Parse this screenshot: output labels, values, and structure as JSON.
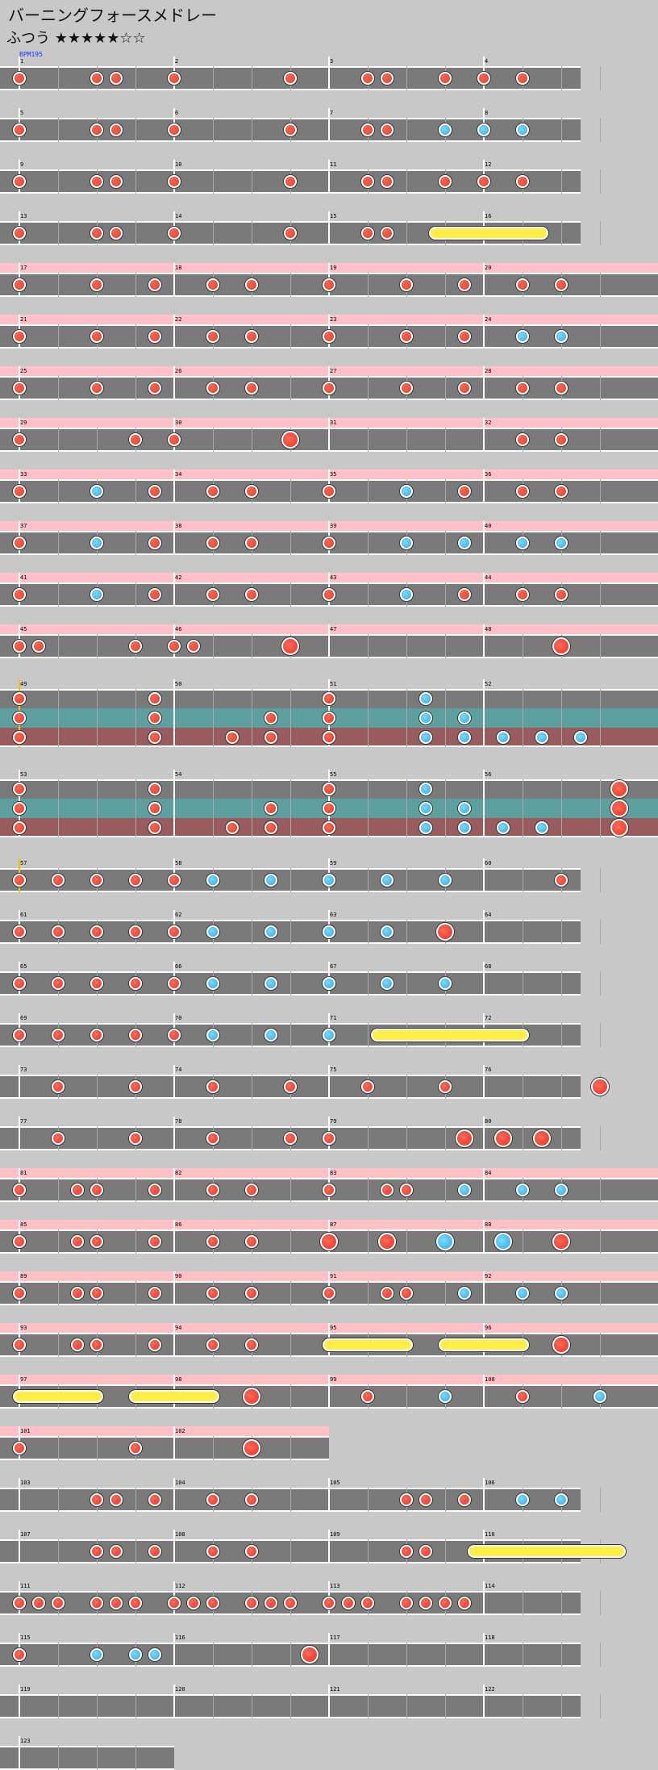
{
  "title": "バーニングフォースメドレー",
  "difficulty": {
    "label": "ふつう",
    "stars": "★★★★★☆☆"
  },
  "bpm_label": "BPM195",
  "colors": {
    "don": "#e8321e",
    "ka": "#2aa6e8",
    "roll": "#ffee44",
    "gogo_band": "#ffc0c6",
    "branch_normal": "#7a7a7a",
    "branch_pro": "#5e9fa0",
    "branch_master": "#9a5b5e"
  },
  "icons": {
    "don": "red-circle",
    "ka": "blue-circle",
    "roll": "yellow-bar"
  },
  "rows": [
    {
      "start": 1,
      "measures": 4,
      "gogo": false
    },
    {
      "start": 5,
      "measures": 4,
      "gogo": false
    },
    {
      "start": 9,
      "measures": 4,
      "gogo": false
    },
    {
      "start": 13,
      "measures": 4,
      "gogo": false
    },
    {
      "start": 17,
      "measures": 4,
      "gogo": true
    },
    {
      "start": 21,
      "measures": 4,
      "gogo": true
    },
    {
      "start": 25,
      "measures": 4,
      "gogo": true,
      "labels": [
        "25",
        "26",
        "27",
        "28"
      ]
    },
    {
      "start": 29,
      "measures": 4,
      "gogo": true
    },
    {
      "start": 33,
      "measures": 4,
      "gogo": true
    },
    {
      "start": 37,
      "measures": 4,
      "gogo": true
    },
    {
      "start": 41,
      "measures": 4,
      "gogo": true
    },
    {
      "start": 45,
      "measures": 4,
      "gogo": true
    },
    {
      "start": 49,
      "measures": 4,
      "gogo": false,
      "branch": true
    },
    {
      "start": 53,
      "measures": 4,
      "gogo": false,
      "branch": true
    },
    {
      "start": 57,
      "measures": 4,
      "gogo": false
    },
    {
      "start": 61,
      "measures": 4,
      "gogo": false
    },
    {
      "start": 65,
      "measures": 4,
      "gogo": false
    },
    {
      "start": 69,
      "measures": 4,
      "gogo": false
    },
    {
      "start": 73,
      "measures": 4,
      "gogo": false
    },
    {
      "start": 77,
      "measures": 4,
      "gogo": false
    },
    {
      "start": 81,
      "measures": 4,
      "gogo": true
    },
    {
      "start": 85,
      "measures": 4,
      "gogo": true
    },
    {
      "start": 89,
      "measures": 4,
      "gogo": true
    },
    {
      "start": 93,
      "measures": 4,
      "gogo": true
    },
    {
      "start": 97,
      "measures": 4,
      "gogo": true
    },
    {
      "start": 101,
      "measures": 2,
      "gogo": true
    },
    {
      "start": 103,
      "measures": 4,
      "gogo": false
    },
    {
      "start": 107,
      "measures": 4,
      "gogo": false
    },
    {
      "start": 111,
      "measures": 4,
      "gogo": false
    },
    {
      "start": 115,
      "measures": 4,
      "gogo": false
    },
    {
      "start": 119,
      "measures": 4,
      "gogo": false
    },
    {
      "start": 123,
      "measures": 1,
      "gogo": false
    }
  ],
  "notes": [
    [
      [
        0,
        "d"
      ],
      [
        4,
        "d"
      ],
      [
        5,
        "d"
      ],
      [
        8,
        "d"
      ],
      [
        14,
        "d"
      ],
      [
        18,
        "d"
      ],
      [
        19,
        "d"
      ],
      [
        22,
        "d"
      ],
      [
        24,
        "d"
      ],
      [
        26,
        "d"
      ]
    ],
    [
      [
        0,
        "d"
      ],
      [
        4,
        "d"
      ],
      [
        5,
        "d"
      ],
      [
        8,
        "d"
      ],
      [
        14,
        "d"
      ],
      [
        18,
        "d"
      ],
      [
        19,
        "d"
      ],
      [
        22,
        "k"
      ],
      [
        24,
        "k"
      ],
      [
        26,
        "k"
      ]
    ],
    [
      [
        0,
        "d"
      ],
      [
        4,
        "d"
      ],
      [
        5,
        "d"
      ],
      [
        8,
        "d"
      ],
      [
        14,
        "d"
      ],
      [
        18,
        "d"
      ],
      [
        19,
        "d"
      ],
      [
        22,
        "d"
      ],
      [
        24,
        "d"
      ],
      [
        26,
        "d"
      ]
    ],
    [
      [
        0,
        "d"
      ],
      [
        4,
        "d"
      ],
      [
        5,
        "d"
      ],
      [
        8,
        "d"
      ],
      [
        14,
        "d"
      ],
      [
        18,
        "d"
      ],
      [
        19,
        "d"
      ],
      [
        21.5,
        "r",
        27
      ]
    ],
    [
      [
        0,
        "d"
      ],
      [
        4,
        "d"
      ],
      [
        7,
        "d"
      ],
      [
        10,
        "d"
      ],
      [
        12,
        "d"
      ],
      [
        16,
        "d"
      ],
      [
        20,
        "d"
      ],
      [
        23,
        "d"
      ],
      [
        26,
        "d"
      ],
      [
        28,
        "d"
      ]
    ],
    [
      [
        0,
        "d"
      ],
      [
        4,
        "d"
      ],
      [
        7,
        "d"
      ],
      [
        10,
        "d"
      ],
      [
        12,
        "d"
      ],
      [
        16,
        "d"
      ],
      [
        20,
        "d"
      ],
      [
        23,
        "d"
      ],
      [
        26,
        "k"
      ],
      [
        28,
        "k"
      ]
    ],
    [
      [
        0,
        "d"
      ],
      [
        4,
        "d"
      ],
      [
        7,
        "d"
      ],
      [
        10,
        "d"
      ],
      [
        12,
        "d"
      ],
      [
        16,
        "d"
      ],
      [
        20,
        "d"
      ],
      [
        23,
        "d"
      ],
      [
        26,
        "d"
      ],
      [
        28,
        "d"
      ]
    ],
    [
      [
        0,
        "d"
      ],
      [
        6,
        "d"
      ],
      [
        8,
        "d"
      ],
      [
        14,
        "D"
      ],
      [
        26,
        "d"
      ],
      [
        28,
        "d"
      ]
    ],
    [
      [
        0,
        "d"
      ],
      [
        4,
        "k"
      ],
      [
        7,
        "d"
      ],
      [
        10,
        "d"
      ],
      [
        12,
        "d"
      ],
      [
        16,
        "d"
      ],
      [
        20,
        "k"
      ],
      [
        23,
        "d"
      ],
      [
        26,
        "d"
      ],
      [
        28,
        "d"
      ]
    ],
    [
      [
        0,
        "d"
      ],
      [
        4,
        "k"
      ],
      [
        7,
        "d"
      ],
      [
        10,
        "d"
      ],
      [
        12,
        "d"
      ],
      [
        16,
        "d"
      ],
      [
        20,
        "k"
      ],
      [
        23,
        "k"
      ],
      [
        26,
        "k"
      ],
      [
        28,
        "k"
      ]
    ],
    [
      [
        0,
        "d"
      ],
      [
        4,
        "k"
      ],
      [
        7,
        "d"
      ],
      [
        10,
        "d"
      ],
      [
        12,
        "d"
      ],
      [
        16,
        "d"
      ],
      [
        20,
        "k"
      ],
      [
        23,
        "d"
      ],
      [
        26,
        "d"
      ],
      [
        28,
        "d"
      ]
    ],
    [
      [
        0,
        "d"
      ],
      [
        1,
        "d"
      ],
      [
        6,
        "d"
      ],
      [
        8,
        "d"
      ],
      [
        9,
        "d"
      ],
      [
        14,
        "D"
      ],
      [
        28,
        "D"
      ]
    ]
  ],
  "notes_rest": [
    [
      [
        0,
        "d"
      ],
      [
        2,
        "d"
      ],
      [
        4,
        "d"
      ],
      [
        6,
        "d"
      ],
      [
        8,
        "d"
      ],
      [
        10,
        "k"
      ],
      [
        13,
        "k"
      ],
      [
        16,
        "k"
      ],
      [
        19,
        "k"
      ],
      [
        22,
        "k"
      ],
      [
        28,
        "d"
      ]
    ],
    [
      [
        0,
        "d"
      ],
      [
        2,
        "d"
      ],
      [
        4,
        "d"
      ],
      [
        6,
        "d"
      ],
      [
        8,
        "d"
      ],
      [
        10,
        "k"
      ],
      [
        13,
        "k"
      ],
      [
        16,
        "k"
      ],
      [
        19,
        "k"
      ],
      [
        22,
        "D"
      ]
    ],
    [
      [
        0,
        "d"
      ],
      [
        2,
        "d"
      ],
      [
        4,
        "d"
      ],
      [
        6,
        "d"
      ],
      [
        8,
        "d"
      ],
      [
        10,
        "k"
      ],
      [
        13,
        "k"
      ],
      [
        16,
        "k"
      ],
      [
        19,
        "k"
      ],
      [
        22,
        "k"
      ]
    ],
    [
      [
        0,
        "d"
      ],
      [
        2,
        "d"
      ],
      [
        4,
        "d"
      ],
      [
        6,
        "d"
      ],
      [
        8,
        "d"
      ],
      [
        10,
        "k"
      ],
      [
        13,
        "k"
      ],
      [
        16,
        "k"
      ],
      [
        18.5,
        "r",
        26
      ]
    ],
    [
      [
        2,
        "d"
      ],
      [
        6,
        "d"
      ],
      [
        10,
        "d"
      ],
      [
        14,
        "d"
      ],
      [
        18,
        "d"
      ],
      [
        22,
        "d"
      ],
      [
        30,
        "D"
      ]
    ],
    [
      [
        2,
        "d"
      ],
      [
        6,
        "d"
      ],
      [
        10,
        "d"
      ],
      [
        14,
        "d"
      ],
      [
        16,
        "d"
      ],
      [
        23,
        "D"
      ],
      [
        25,
        "D"
      ],
      [
        27,
        "D"
      ]
    ],
    [
      [
        0,
        "d"
      ],
      [
        3,
        "d"
      ],
      [
        4,
        "d"
      ],
      [
        7,
        "d"
      ],
      [
        10,
        "d"
      ],
      [
        12,
        "d"
      ],
      [
        16,
        "d"
      ],
      [
        19,
        "d"
      ],
      [
        20,
        "d"
      ],
      [
        23,
        "k"
      ],
      [
        26,
        "k"
      ],
      [
        28,
        "k"
      ]
    ],
    [
      [
        0,
        "d"
      ],
      [
        3,
        "d"
      ],
      [
        4,
        "d"
      ],
      [
        7,
        "d"
      ],
      [
        10,
        "d"
      ],
      [
        12,
        "d"
      ],
      [
        16,
        "D"
      ],
      [
        19,
        "D"
      ],
      [
        22,
        "K"
      ],
      [
        25,
        "K"
      ],
      [
        28,
        "D"
      ]
    ],
    [
      [
        0,
        "d"
      ],
      [
        3,
        "d"
      ],
      [
        4,
        "d"
      ],
      [
        7,
        "d"
      ],
      [
        10,
        "d"
      ],
      [
        12,
        "d"
      ],
      [
        16,
        "d"
      ],
      [
        19,
        "d"
      ],
      [
        20,
        "d"
      ],
      [
        23,
        "k"
      ],
      [
        26,
        "k"
      ],
      [
        28,
        "k"
      ]
    ],
    [
      [
        0,
        "d"
      ],
      [
        3,
        "d"
      ],
      [
        4,
        "d"
      ],
      [
        7,
        "d"
      ],
      [
        10,
        "d"
      ],
      [
        12,
        "d"
      ],
      [
        16,
        "r",
        20
      ],
      [
        22,
        "r",
        26
      ],
      [
        28,
        "D"
      ]
    ],
    [
      [
        0,
        "r",
        4
      ],
      [
        6,
        "r",
        10
      ],
      [
        12,
        "D"
      ],
      [
        18,
        "d"
      ],
      [
        22,
        "k"
      ],
      [
        26,
        "d"
      ],
      [
        30,
        "k"
      ]
    ],
    [
      [
        0,
        "d"
      ],
      [
        6,
        "d"
      ],
      [
        12,
        "D"
      ]
    ],
    [
      [
        4,
        "d"
      ],
      [
        5,
        "d"
      ],
      [
        7,
        "d"
      ],
      [
        10,
        "d"
      ],
      [
        12,
        "d"
      ],
      [
        20,
        "d"
      ],
      [
        21,
        "d"
      ],
      [
        23,
        "d"
      ],
      [
        26,
        "k"
      ],
      [
        28,
        "k"
      ]
    ],
    [
      [
        4,
        "d"
      ],
      [
        5,
        "d"
      ],
      [
        7,
        "d"
      ],
      [
        10,
        "d"
      ],
      [
        12,
        "d"
      ],
      [
        20,
        "d"
      ],
      [
        21,
        "d"
      ],
      [
        23.5,
        "r",
        31
      ]
    ],
    [
      [
        0,
        "d"
      ],
      [
        1,
        "d"
      ],
      [
        2,
        "d"
      ],
      [
        4,
        "d"
      ],
      [
        5,
        "d"
      ],
      [
        6,
        "d"
      ],
      [
        8,
        "d"
      ],
      [
        9,
        "d"
      ],
      [
        10,
        "d"
      ],
      [
        12,
        "d"
      ],
      [
        13,
        "d"
      ],
      [
        14,
        "d"
      ],
      [
        16,
        "d"
      ],
      [
        17,
        "d"
      ],
      [
        18,
        "d"
      ],
      [
        20,
        "d"
      ],
      [
        21,
        "d"
      ],
      [
        22,
        "d"
      ],
      [
        23,
        "d"
      ]
    ],
    [
      [
        0,
        "d"
      ],
      [
        4,
        "k"
      ],
      [
        6,
        "k"
      ],
      [
        7,
        "k"
      ],
      [
        15,
        "D"
      ]
    ],
    [],
    []
  ],
  "branch_notes": {
    "row49": [
      [
        [
          0,
          "d"
        ],
        [
          7,
          "d"
        ],
        [
          16,
          "d"
        ],
        [
          21,
          "k"
        ]
      ],
      [
        [
          0,
          "d"
        ],
        [
          7,
          "d"
        ],
        [
          13,
          "d"
        ],
        [
          16,
          "d"
        ],
        [
          21,
          "k"
        ],
        [
          23,
          "k"
        ]
      ],
      [
        [
          0,
          "d"
        ],
        [
          7,
          "d"
        ],
        [
          11,
          "d"
        ],
        [
          13,
          "d"
        ],
        [
          16,
          "d"
        ],
        [
          21,
          "k"
        ],
        [
          23,
          "k"
        ],
        [
          25,
          "k"
        ],
        [
          27,
          "k"
        ],
        [
          29,
          "k"
        ]
      ]
    ],
    "row53": [
      [
        [
          0,
          "d"
        ],
        [
          7,
          "d"
        ],
        [
          16,
          "d"
        ],
        [
          21,
          "k"
        ],
        [
          31,
          "D"
        ]
      ],
      [
        [
          0,
          "d"
        ],
        [
          7,
          "d"
        ],
        [
          13,
          "d"
        ],
        [
          16,
          "d"
        ],
        [
          21,
          "k"
        ],
        [
          23,
          "k"
        ],
        [
          31,
          "D"
        ]
      ],
      [
        [
          0,
          "d"
        ],
        [
          7,
          "d"
        ],
        [
          11,
          "d"
        ],
        [
          13,
          "d"
        ],
        [
          16,
          "d"
        ],
        [
          21,
          "k"
        ],
        [
          23,
          "k"
        ],
        [
          25,
          "k"
        ],
        [
          27,
          "k"
        ],
        [
          31,
          "D"
        ]
      ]
    ]
  }
}
